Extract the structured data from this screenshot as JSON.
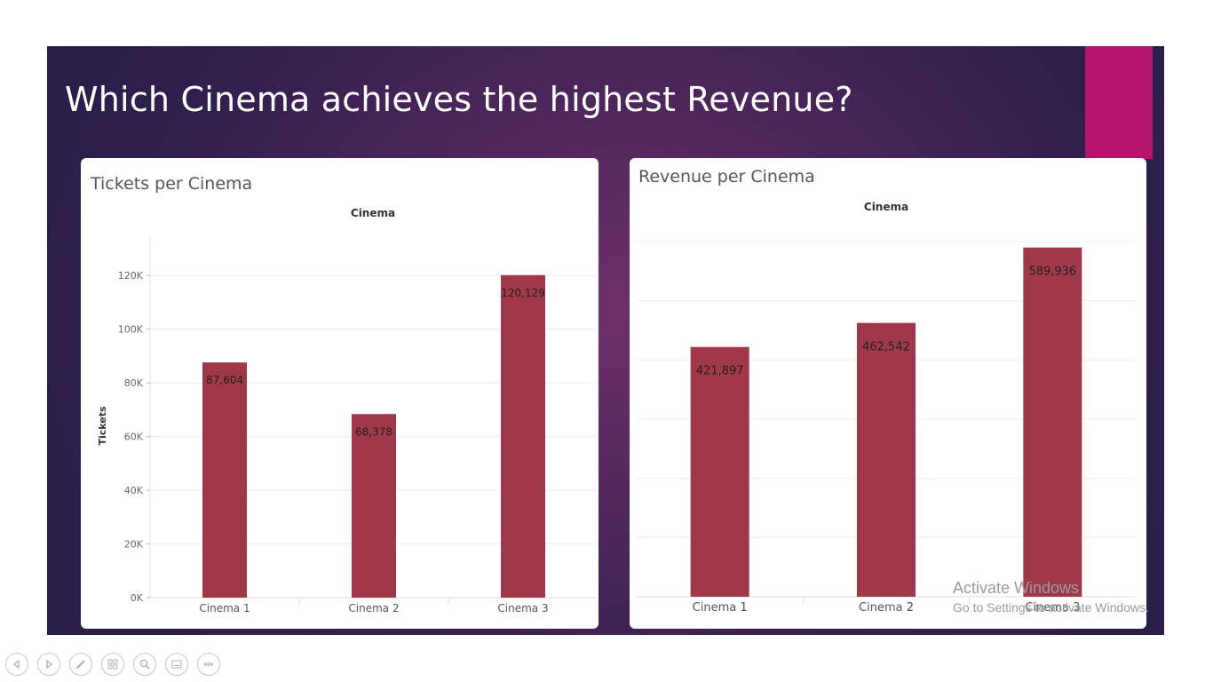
{
  "slide": {
    "title": "Which Cinema achieves the highest Revenue?",
    "accent_color": "#b5166b"
  },
  "chart_data": [
    {
      "type": "bar",
      "title": "Tickets per Cinema",
      "header": "Cinema",
      "ylabel": "Tickets",
      "categories": [
        "Cinema 1",
        "Cinema 2",
        "Cinema 3"
      ],
      "values": [
        87604,
        68378,
        120129
      ],
      "value_labels": [
        "87,604",
        "68,378",
        "120,129"
      ],
      "ylim": [
        0,
        128000
      ],
      "yticks": [
        0,
        20000,
        40000,
        60000,
        80000,
        100000,
        120000
      ],
      "ytick_labels": [
        "0K",
        "20K",
        "40K",
        "60K",
        "80K",
        "100K",
        "120K"
      ],
      "bar_color": "#a0384a",
      "grid": true
    },
    {
      "type": "bar",
      "title": "Revenue per Cinema",
      "header": "Cinema",
      "ylabel": "",
      "categories": [
        "Cinema 1",
        "Cinema 2",
        "Cinema 3"
      ],
      "values": [
        421897,
        462542,
        589936
      ],
      "value_labels": [
        "421,897",
        "462,542",
        "589,936"
      ],
      "ylim": [
        0,
        600000
      ],
      "gridlines": [
        0,
        100000,
        200000,
        300000,
        400000,
        500000,
        600000
      ],
      "bar_color": "#a0384a",
      "grid": true
    }
  ],
  "overlay": {
    "activate_title": "Activate Windows",
    "activate_sub": "Go to Settings to activate Windows."
  },
  "toolbar": {
    "icons": [
      "previous-icon",
      "next-icon",
      "pen-icon",
      "slides-icon",
      "zoom-icon",
      "subtitles-icon",
      "more-icon"
    ]
  }
}
